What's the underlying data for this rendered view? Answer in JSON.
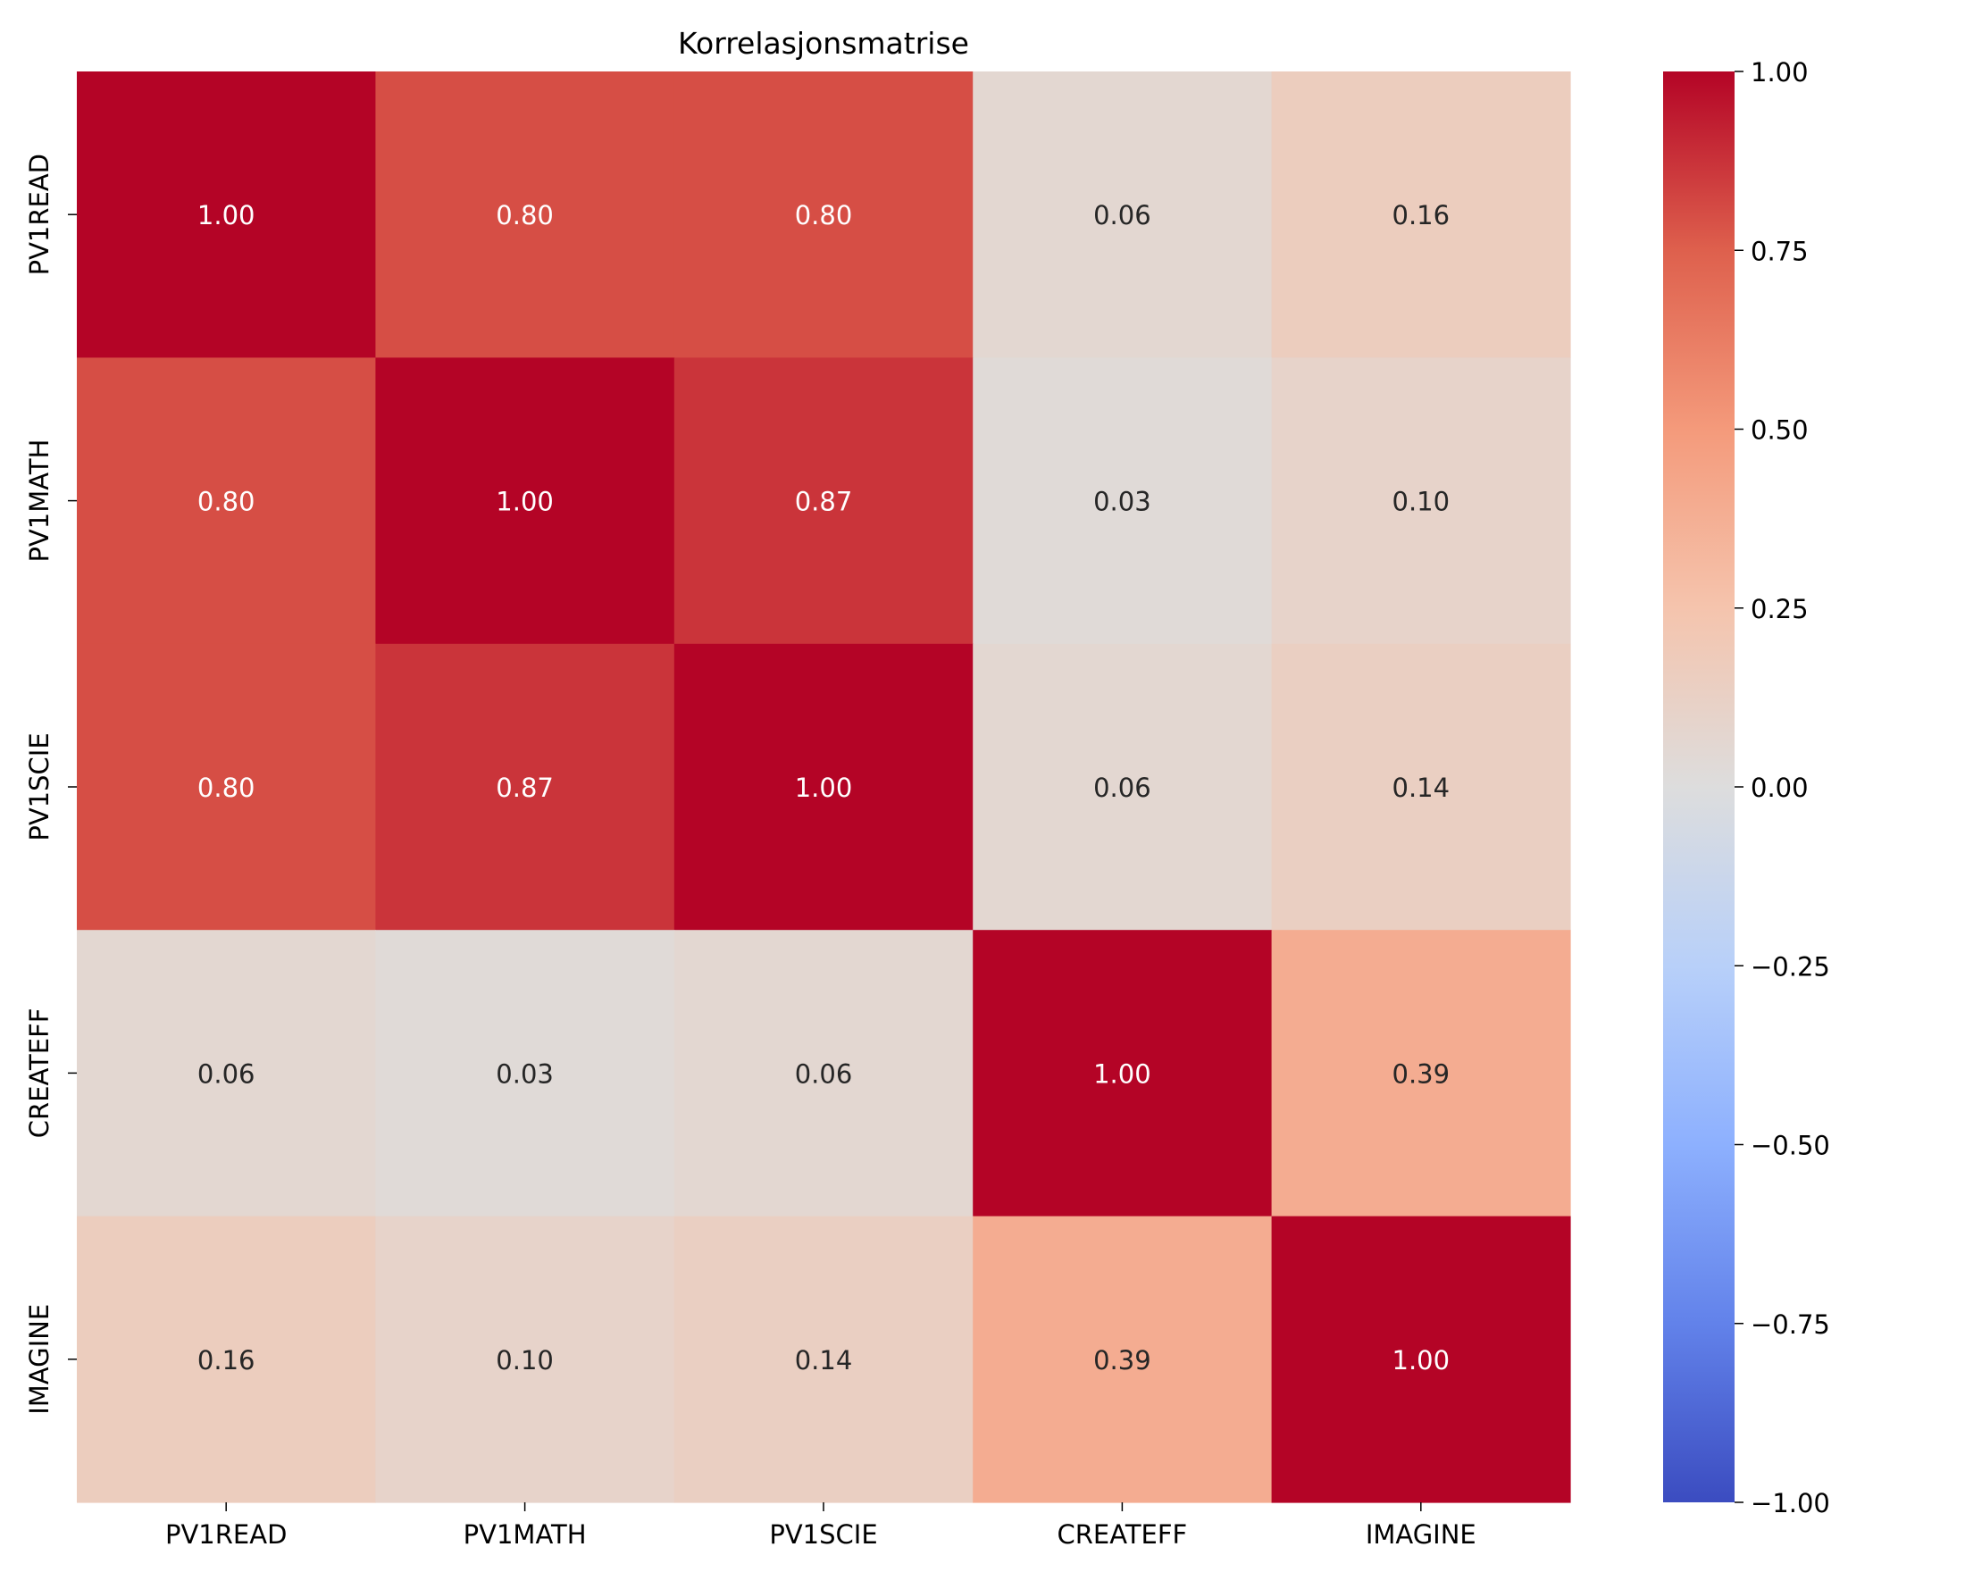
{
  "chart_data": {
    "type": "heatmap",
    "title": "Korrelasjonsmatrise",
    "x_labels": [
      "PV1READ",
      "PV1MATH",
      "PV1SCIE",
      "CREATEFF",
      "IMAGINE"
    ],
    "y_labels": [
      "PV1READ",
      "PV1MATH",
      "PV1SCIE",
      "CREATEFF",
      "IMAGINE"
    ],
    "values": [
      [
        1.0,
        0.8,
        0.8,
        0.06,
        0.16
      ],
      [
        0.8,
        1.0,
        0.87,
        0.03,
        0.1
      ],
      [
        0.8,
        0.87,
        1.0,
        0.06,
        0.14
      ],
      [
        0.06,
        0.03,
        0.06,
        1.0,
        0.39
      ],
      [
        0.16,
        0.1,
        0.14,
        0.39,
        1.0
      ]
    ],
    "value_format_decimals": 2,
    "colorbar": {
      "colormap": "coolwarm",
      "vmin": -1.0,
      "vmax": 1.0,
      "ticks": [
        1.0,
        0.75,
        0.5,
        0.25,
        0.0,
        -0.25,
        -0.5,
        -0.75,
        -1.0
      ],
      "tick_labels": [
        "1.00",
        "0.75",
        "0.50",
        "0.25",
        "0.00",
        "−0.25",
        "−0.50",
        "−0.75",
        "−1.00"
      ]
    },
    "colors": {
      "low": "#3b4cc0",
      "mid": "#dddddd",
      "high": "#b40426",
      "text_dark": "#262626",
      "text_light": "#ffffff"
    }
  }
}
